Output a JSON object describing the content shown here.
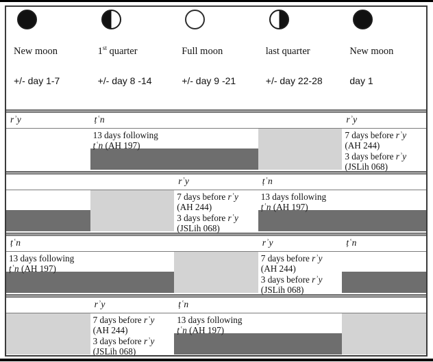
{
  "colors": {
    "dark_bar": "#6e6e6e",
    "light_block": "#d3d3d3",
    "separator": "#9a9a9a",
    "border": "#3a3a3a"
  },
  "terms": {
    "ry": "rʾy",
    "tn": "ṭʿn"
  },
  "phases": [
    {
      "icon": "new-moon-icon",
      "shade": "full-dark",
      "label_pre": "New moon",
      "label_sup": "",
      "label_post": "",
      "days": "+/- day 1-7"
    },
    {
      "icon": "first-quarter-moon-icon",
      "shade": "left-dark",
      "label_pre": "1",
      "label_sup": "st",
      "label_post": " quarter",
      "days": "+/- day 8 -14"
    },
    {
      "icon": "full-moon-icon",
      "shade": "light",
      "label_pre": "Full moon",
      "label_sup": "",
      "label_post": "",
      "days": "+/- day 9 -21"
    },
    {
      "icon": "last-quarter-moon-icon",
      "shade": "right-dark",
      "label_pre": "last quarter",
      "label_sup": "",
      "label_post": "",
      "days": "+/- day 22-28"
    },
    {
      "icon": "new-moon-icon",
      "shade": "full-dark",
      "label_pre": "New moon",
      "label_sup": "",
      "label_post": "",
      "days": "day 1"
    }
  ],
  "snippets": {
    "following": {
      "line1": "13 days following",
      "term": "tn",
      "ref": " (AH 197)"
    },
    "before": {
      "l1_pre": "7 days before ",
      "term": "ry",
      "l2": "(AH 244)",
      "l3_pre": "3 days before ",
      "l4": "(JSLih 068)"
    }
  },
  "bands": [
    {
      "headers": [
        {
          "col": 0,
          "term": "ry"
        },
        {
          "col": 1,
          "term": "tn"
        },
        {
          "col": 4,
          "term": "ry"
        }
      ],
      "texts": [
        {
          "kind": "following",
          "col": 1,
          "span": 2
        },
        {
          "kind": "before",
          "col": 4,
          "span": 1
        }
      ],
      "bars": [
        {
          "col": 1,
          "span": 2
        }
      ],
      "blocks": [
        {
          "col": 3,
          "span": 1
        }
      ]
    },
    {
      "headers": [
        {
          "col": 2,
          "term": "ry"
        },
        {
          "col": 3,
          "term": "tn"
        }
      ],
      "texts": [
        {
          "kind": "before",
          "col": 2,
          "span": 1
        },
        {
          "kind": "following",
          "col": 3,
          "span": 2
        }
      ],
      "bars": [
        {
          "col": 0,
          "span": 1
        },
        {
          "col": 3,
          "span": 2
        }
      ],
      "blocks": [
        {
          "col": 1,
          "span": 1
        }
      ]
    },
    {
      "headers": [
        {
          "col": 0,
          "term": "tn"
        },
        {
          "col": 3,
          "term": "ry"
        },
        {
          "col": 4,
          "term": "tn"
        }
      ],
      "texts": [
        {
          "kind": "following",
          "col": 0,
          "span": 2
        },
        {
          "kind": "before",
          "col": 3,
          "span": 1
        }
      ],
      "bars": [
        {
          "col": 0,
          "span": 2
        },
        {
          "col": 4,
          "span": 1
        }
      ],
      "blocks": [
        {
          "col": 2,
          "span": 1
        }
      ]
    },
    {
      "headers": [
        {
          "col": 1,
          "term": "ry"
        },
        {
          "col": 2,
          "term": "tn"
        }
      ],
      "texts": [
        {
          "kind": "before",
          "col": 1,
          "span": 1
        },
        {
          "kind": "following",
          "col": 2,
          "span": 2
        }
      ],
      "bars": [
        {
          "col": 2,
          "span": 2
        }
      ],
      "blocks": [
        {
          "col": 0,
          "span": 1
        },
        {
          "col": 4,
          "span": 1
        }
      ]
    }
  ]
}
